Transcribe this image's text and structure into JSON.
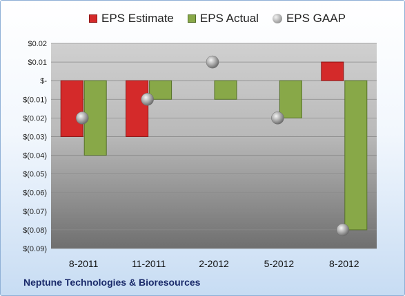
{
  "legend": {
    "estimate": "EPS Estimate",
    "actual": "EPS Actual",
    "gaap": "EPS GAAP"
  },
  "company": "Neptune Technologies & Bioresources",
  "colors": {
    "estimate": "#d42a2a",
    "actual": "#88a848",
    "gaap": "#a8a8a8"
  },
  "chart_data": {
    "type": "bar",
    "categories": [
      "8-2011",
      "11-2011",
      "2-2012",
      "5-2012",
      "8-2012"
    ],
    "series": [
      {
        "name": "EPS Estimate",
        "values": [
          -0.03,
          -0.03,
          null,
          null,
          0.01
        ]
      },
      {
        "name": "EPS Actual",
        "values": [
          -0.04,
          -0.01,
          -0.01,
          -0.02,
          -0.08
        ]
      },
      {
        "name": "EPS GAAP",
        "values": [
          -0.02,
          -0.01,
          0.01,
          -0.02,
          -0.08
        ],
        "marker": "circle"
      }
    ],
    "ylim": [
      -0.09,
      0.02
    ],
    "yticks": [
      0.02,
      0.01,
      0,
      -0.01,
      -0.02,
      -0.03,
      -0.04,
      -0.05,
      -0.06,
      -0.07,
      -0.08,
      -0.09
    ],
    "ytick_labels": [
      "$0.02",
      "$0.01",
      "$-",
      "$(0.01)",
      "$(0.02)",
      "$(0.03)",
      "$(0.04)",
      "$(0.05)",
      "$(0.06)",
      "$(0.07)",
      "$(0.08)",
      "$(0.09)"
    ],
    "grid": true,
    "legend_position": "top"
  }
}
